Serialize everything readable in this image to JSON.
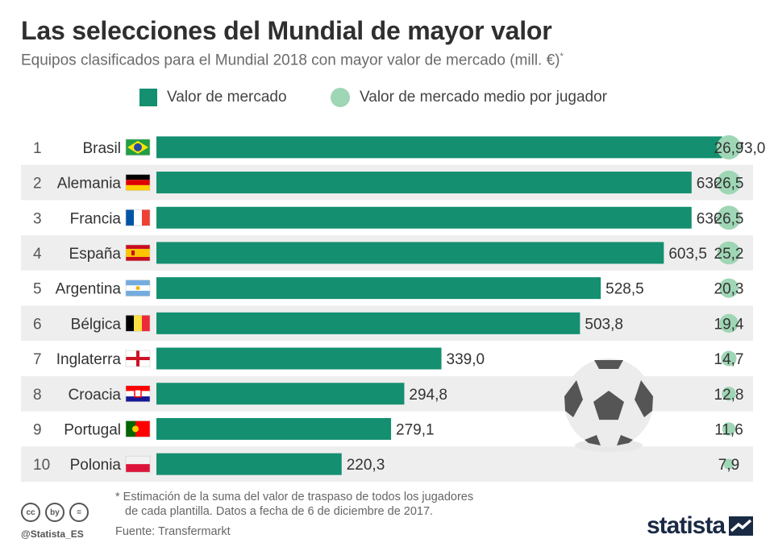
{
  "title": "Las selecciones del Mundial de mayor valor",
  "subtitle": "Equipos clasificados para el Mundial 2018 con mayor valor de mercado (mill. €)",
  "subtitle_mark": "*",
  "legend": {
    "market_value": "Valor de mercado",
    "avg_value": "Valor de mercado medio por jugador"
  },
  "colors": {
    "bar": "#148f70",
    "circle": "#9fd6b5",
    "row_stripe": "#eeeeee",
    "text": "#333333",
    "brand": "#1a2a44"
  },
  "chart_data": {
    "type": "bar",
    "orientation": "horizontal",
    "xlim": [
      0,
      700
    ],
    "grid": false,
    "legend_position": "top",
    "ranks": [
      "1",
      "2",
      "3",
      "4",
      "5",
      "6",
      "7",
      "8",
      "9",
      "10"
    ],
    "categories": [
      "Brasil",
      "Alemania",
      "Francia",
      "España",
      "Argentina",
      "Bélgica",
      "Inglaterra",
      "Croacia",
      "Portugal",
      "Polonia"
    ],
    "flags": [
      "brazil",
      "germany",
      "france",
      "spain",
      "argentina",
      "belgium",
      "england",
      "croatia",
      "portugal",
      "poland"
    ],
    "series": [
      {
        "name": "Valor de mercado",
        "values": [
          673.0,
          636.5,
          636.5,
          603.5,
          528.5,
          503.8,
          339.0,
          294.8,
          279.1,
          220.3
        ],
        "labels": [
          "673,0",
          "636,5",
          "636,5",
          "603,5",
          "528,5",
          "503,8",
          "339,0",
          "294,8",
          "279,1",
          "220,3"
        ]
      },
      {
        "name": "Valor de mercado medio por jugador",
        "values": [
          26.9,
          26.5,
          26.5,
          25.2,
          20.3,
          19.4,
          14.7,
          12.8,
          11.6,
          7.9
        ],
        "labels": [
          "26,9",
          "26,5",
          "26,5",
          "25,2",
          "20,3",
          "19,4",
          "14,7",
          "12,8",
          "11,6",
          "7,9"
        ]
      }
    ]
  },
  "decor": {
    "ball_icon": "soccer-ball-icon"
  },
  "footnote": {
    "line1": "* Estimación de la suma del valor de traspaso de todos los jugadores",
    "line2": "de cada plantilla. Datos a fecha de 6 de diciembre de 2017."
  },
  "source": "Fuente: Transfermarkt",
  "license_icons": [
    "cc",
    "by",
    "="
  ],
  "handle": "@Statista_ES",
  "brand": "statista"
}
